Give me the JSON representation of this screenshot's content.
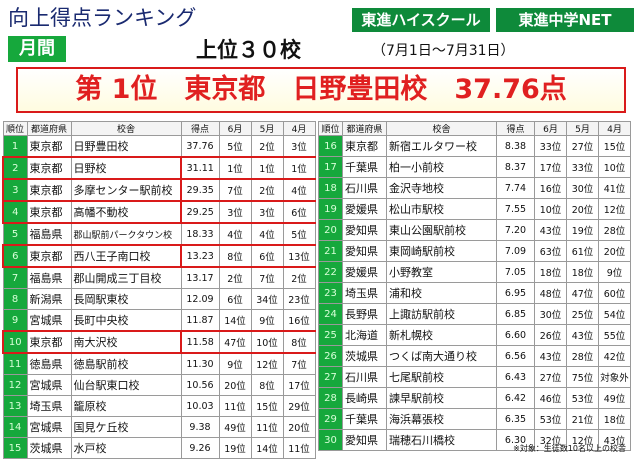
{
  "title": "向上得点ランキング",
  "logos": [
    "東進ハイスクール",
    "東進中学NET"
  ],
  "period": "月間",
  "headline": "上位３０校",
  "date_range": "（7月1日～7月31日）",
  "banner": "第 1位　東京都　日野豊田校　37.76点",
  "columns": [
    "順位",
    "都道府県",
    "校舎",
    "得点",
    "6月",
    "5月",
    "4月"
  ],
  "left_rows": [
    {
      "rank": "1",
      "pref": "東京都",
      "school": "日野豊田校",
      "score": "37.76",
      "m6": "5位",
      "m5": "2位",
      "m4": "3位",
      "hl": false
    },
    {
      "rank": "2",
      "pref": "東京都",
      "school": "日野校",
      "score": "31.11",
      "m6": "1位",
      "m5": "1位",
      "m4": "1位",
      "hl": true
    },
    {
      "rank": "3",
      "pref": "東京都",
      "school": "多摩センター駅前校",
      "score": "29.35",
      "m6": "7位",
      "m5": "2位",
      "m4": "4位",
      "hl": true
    },
    {
      "rank": "4",
      "pref": "東京都",
      "school": "高幡不動校",
      "score": "29.25",
      "m6": "3位",
      "m5": "3位",
      "m4": "6位",
      "hl": true
    },
    {
      "rank": "5",
      "pref": "福島県",
      "school": "郡山駅前パークタウン校",
      "score": "18.33",
      "m6": "4位",
      "m5": "4位",
      "m4": "5位",
      "hl": false
    },
    {
      "rank": "6",
      "pref": "東京都",
      "school": "西八王子南口校",
      "score": "13.23",
      "m6": "8位",
      "m5": "6位",
      "m4": "13位",
      "hl": true
    },
    {
      "rank": "7",
      "pref": "福島県",
      "school": "郡山開成三丁目校",
      "score": "13.17",
      "m6": "2位",
      "m5": "7位",
      "m4": "2位",
      "hl": false
    },
    {
      "rank": "8",
      "pref": "新潟県",
      "school": "長岡駅東校",
      "score": "12.09",
      "m6": "6位",
      "m5": "34位",
      "m4": "23位",
      "hl": false
    },
    {
      "rank": "9",
      "pref": "宮城県",
      "school": "長町中央校",
      "score": "11.87",
      "m6": "14位",
      "m5": "9位",
      "m4": "16位",
      "hl": false
    },
    {
      "rank": "10",
      "pref": "東京都",
      "school": "南大沢校",
      "score": "11.58",
      "m6": "47位",
      "m5": "10位",
      "m4": "8位",
      "hl": true
    },
    {
      "rank": "11",
      "pref": "徳島県",
      "school": "徳島駅前校",
      "score": "11.30",
      "m6": "9位",
      "m5": "12位",
      "m4": "7位",
      "hl": false
    },
    {
      "rank": "12",
      "pref": "宮城県",
      "school": "仙台駅東口校",
      "score": "10.56",
      "m6": "20位",
      "m5": "8位",
      "m4": "17位",
      "hl": false
    },
    {
      "rank": "13",
      "pref": "埼玉県",
      "school": "籠原校",
      "score": "10.03",
      "m6": "11位",
      "m5": "15位",
      "m4": "29位",
      "hl": false
    },
    {
      "rank": "14",
      "pref": "宮城県",
      "school": "国見ケ丘校",
      "score": "9.38",
      "m6": "49位",
      "m5": "11位",
      "m4": "20位",
      "hl": false
    },
    {
      "rank": "15",
      "pref": "茨城県",
      "school": "水戸校",
      "score": "9.26",
      "m6": "19位",
      "m5": "14位",
      "m4": "11位",
      "hl": false
    }
  ],
  "right_rows": [
    {
      "rank": "16",
      "pref": "東京都",
      "school": "新宿エルタワー校",
      "score": "8.38",
      "m6": "33位",
      "m5": "27位",
      "m4": "15位"
    },
    {
      "rank": "17",
      "pref": "千葉県",
      "school": "柏一小前校",
      "score": "8.37",
      "m6": "17位",
      "m5": "33位",
      "m4": "10位"
    },
    {
      "rank": "18",
      "pref": "石川県",
      "school": "金沢寺地校",
      "score": "7.74",
      "m6": "16位",
      "m5": "30位",
      "m4": "41位"
    },
    {
      "rank": "19",
      "pref": "愛媛県",
      "school": "松山市駅校",
      "score": "7.55",
      "m6": "10位",
      "m5": "20位",
      "m4": "12位"
    },
    {
      "rank": "20",
      "pref": "愛知県",
      "school": "東山公園駅前校",
      "score": "7.20",
      "m6": "43位",
      "m5": "19位",
      "m4": "28位"
    },
    {
      "rank": "21",
      "pref": "愛知県",
      "school": "東岡崎駅前校",
      "score": "7.09",
      "m6": "63位",
      "m5": "61位",
      "m4": "20位"
    },
    {
      "rank": "22",
      "pref": "愛媛県",
      "school": "小野教室",
      "score": "7.05",
      "m6": "18位",
      "m5": "18位",
      "m4": "9位"
    },
    {
      "rank": "23",
      "pref": "埼玉県",
      "school": "浦和校",
      "score": "6.95",
      "m6": "48位",
      "m5": "47位",
      "m4": "60位"
    },
    {
      "rank": "24",
      "pref": "長野県",
      "school": "上諏訪駅前校",
      "score": "6.85",
      "m6": "30位",
      "m5": "25位",
      "m4": "54位"
    },
    {
      "rank": "25",
      "pref": "北海道",
      "school": "新札幌校",
      "score": "6.60",
      "m6": "26位",
      "m5": "43位",
      "m4": "55位"
    },
    {
      "rank": "26",
      "pref": "茨城県",
      "school": "つくば南大通り校",
      "score": "6.56",
      "m6": "43位",
      "m5": "28位",
      "m4": "42位"
    },
    {
      "rank": "27",
      "pref": "石川県",
      "school": "七尾駅前校",
      "score": "6.43",
      "m6": "27位",
      "m5": "75位",
      "m4": "対象外"
    },
    {
      "rank": "28",
      "pref": "長崎県",
      "school": "諫早駅前校",
      "score": "6.42",
      "m6": "46位",
      "m5": "53位",
      "m4": "49位"
    },
    {
      "rank": "29",
      "pref": "千葉県",
      "school": "海浜幕張校",
      "score": "6.35",
      "m6": "53位",
      "m5": "21位",
      "m4": "18位"
    },
    {
      "rank": "30",
      "pref": "愛知県",
      "school": "瑞穂石川橋校",
      "score": "6.30",
      "m6": "32位",
      "m5": "12位",
      "m4": "43位"
    }
  ],
  "note": "※対象：生徒数10名以上の校舎"
}
